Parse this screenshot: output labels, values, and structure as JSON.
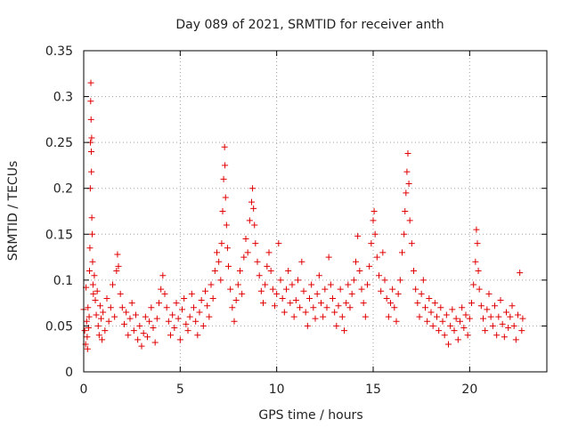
{
  "chart_data": {
    "type": "scatter",
    "title": "Day 089 of 2021, SRMTID for receiver anth",
    "xlabel": "GPS time / hours",
    "ylabel": "SRMTID / TECUs",
    "xlim": [
      0,
      24
    ],
    "ylim": [
      0,
      0.35
    ],
    "xticks": [
      0,
      5,
      10,
      15,
      20
    ],
    "xtick_labels": [
      "0",
      "5",
      "10",
      "15",
      "20"
    ],
    "yticks": [
      0,
      0.05,
      0.1,
      0.15,
      0.2,
      0.25,
      0.3,
      0.35
    ],
    "ytick_labels": [
      "0",
      "0.05",
      "0.1",
      "0.15",
      "0.2",
      "0.25",
      "0.3",
      "0.35"
    ],
    "grid": true,
    "marker": "+",
    "color": "#e00000",
    "series": [
      {
        "name": "SRMTID",
        "points": [
          [
            0.0,
            0.068
          ],
          [
            0.05,
            0.045
          ],
          [
            0.1,
            0.03
          ],
          [
            0.12,
            0.092
          ],
          [
            0.15,
            0.055
          ],
          [
            0.18,
            0.038
          ],
          [
            0.2,
            0.025
          ],
          [
            0.22,
            0.07
          ],
          [
            0.25,
            0.048
          ],
          [
            0.28,
            0.06
          ],
          [
            0.3,
            0.11
          ],
          [
            0.32,
            0.135
          ],
          [
            0.34,
            0.2
          ],
          [
            0.35,
            0.25
          ],
          [
            0.36,
            0.295
          ],
          [
            0.37,
            0.315
          ],
          [
            0.38,
            0.275
          ],
          [
            0.39,
            0.24
          ],
          [
            0.4,
            0.218
          ],
          [
            0.41,
            0.255
          ],
          [
            0.42,
            0.168
          ],
          [
            0.44,
            0.15
          ],
          [
            0.46,
            0.12
          ],
          [
            0.48,
            0.095
          ],
          [
            0.5,
            0.085
          ],
          [
            0.55,
            0.105
          ],
          [
            0.6,
            0.078
          ],
          [
            0.65,
            0.062
          ],
          [
            0.7,
            0.088
          ],
          [
            0.75,
            0.05
          ],
          [
            0.8,
            0.04
          ],
          [
            0.85,
            0.072
          ],
          [
            0.9,
            0.058
          ],
          [
            0.95,
            0.035
          ],
          [
            1.0,
            0.065
          ],
          [
            1.1,
            0.045
          ],
          [
            1.2,
            0.08
          ],
          [
            1.3,
            0.055
          ],
          [
            1.4,
            0.07
          ],
          [
            1.5,
            0.095
          ],
          [
            1.6,
            0.06
          ],
          [
            1.7,
            0.11
          ],
          [
            1.75,
            0.128
          ],
          [
            1.8,
            0.115
          ],
          [
            1.9,
            0.085
          ],
          [
            2.0,
            0.07
          ],
          [
            2.1,
            0.052
          ],
          [
            2.2,
            0.065
          ],
          [
            2.3,
            0.04
          ],
          [
            2.4,
            0.058
          ],
          [
            2.5,
            0.075
          ],
          [
            2.6,
            0.045
          ],
          [
            2.7,
            0.062
          ],
          [
            2.8,
            0.035
          ],
          [
            2.9,
            0.05
          ],
          [
            3.0,
            0.028
          ],
          [
            3.1,
            0.042
          ],
          [
            3.2,
            0.06
          ],
          [
            3.3,
            0.038
          ],
          [
            3.4,
            0.055
          ],
          [
            3.5,
            0.07
          ],
          [
            3.6,
            0.048
          ],
          [
            3.7,
            0.032
          ],
          [
            3.8,
            0.058
          ],
          [
            3.9,
            0.075
          ],
          [
            4.0,
            0.09
          ],
          [
            4.1,
            0.105
          ],
          [
            4.2,
            0.085
          ],
          [
            4.3,
            0.07
          ],
          [
            4.4,
            0.055
          ],
          [
            4.5,
            0.04
          ],
          [
            4.6,
            0.062
          ],
          [
            4.7,
            0.048
          ],
          [
            4.8,
            0.075
          ],
          [
            4.9,
            0.058
          ],
          [
            5.0,
            0.035
          ],
          [
            5.1,
            0.068
          ],
          [
            5.2,
            0.08
          ],
          [
            5.3,
            0.052
          ],
          [
            5.4,
            0.045
          ],
          [
            5.5,
            0.06
          ],
          [
            5.6,
            0.085
          ],
          [
            5.7,
            0.07
          ],
          [
            5.8,
            0.055
          ],
          [
            5.9,
            0.04
          ],
          [
            6.0,
            0.065
          ],
          [
            6.1,
            0.078
          ],
          [
            6.2,
            0.05
          ],
          [
            6.3,
            0.088
          ],
          [
            6.4,
            0.072
          ],
          [
            6.5,
            0.06
          ],
          [
            6.6,
            0.095
          ],
          [
            6.7,
            0.08
          ],
          [
            6.8,
            0.11
          ],
          [
            6.9,
            0.13
          ],
          [
            7.0,
            0.12
          ],
          [
            7.1,
            0.1
          ],
          [
            7.15,
            0.14
          ],
          [
            7.2,
            0.175
          ],
          [
            7.25,
            0.21
          ],
          [
            7.3,
            0.245
          ],
          [
            7.32,
            0.225
          ],
          [
            7.35,
            0.19
          ],
          [
            7.4,
            0.16
          ],
          [
            7.45,
            0.135
          ],
          [
            7.5,
            0.115
          ],
          [
            7.6,
            0.09
          ],
          [
            7.7,
            0.07
          ],
          [
            7.8,
            0.055
          ],
          [
            7.9,
            0.078
          ],
          [
            8.0,
            0.095
          ],
          [
            8.1,
            0.11
          ],
          [
            8.2,
            0.085
          ],
          [
            8.3,
            0.125
          ],
          [
            8.4,
            0.145
          ],
          [
            8.5,
            0.13
          ],
          [
            8.6,
            0.165
          ],
          [
            8.7,
            0.185
          ],
          [
            8.75,
            0.2
          ],
          [
            8.8,
            0.178
          ],
          [
            8.85,
            0.16
          ],
          [
            8.9,
            0.14
          ],
          [
            9.0,
            0.12
          ],
          [
            9.1,
            0.105
          ],
          [
            9.2,
            0.088
          ],
          [
            9.3,
            0.075
          ],
          [
            9.4,
            0.095
          ],
          [
            9.5,
            0.115
          ],
          [
            9.6,
            0.13
          ],
          [
            9.7,
            0.11
          ],
          [
            9.8,
            0.09
          ],
          [
            9.9,
            0.072
          ],
          [
            10.0,
            0.085
          ],
          [
            10.1,
            0.14
          ],
          [
            10.2,
            0.1
          ],
          [
            10.3,
            0.08
          ],
          [
            10.4,
            0.065
          ],
          [
            10.5,
            0.09
          ],
          [
            10.6,
            0.11
          ],
          [
            10.7,
            0.075
          ],
          [
            10.8,
            0.095
          ],
          [
            10.9,
            0.06
          ],
          [
            11.0,
            0.078
          ],
          [
            11.1,
            0.1
          ],
          [
            11.2,
            0.07
          ],
          [
            11.3,
            0.12
          ],
          [
            11.4,
            0.088
          ],
          [
            11.5,
            0.065
          ],
          [
            11.6,
            0.05
          ],
          [
            11.7,
            0.08
          ],
          [
            11.8,
            0.095
          ],
          [
            11.9,
            0.07
          ],
          [
            12.0,
            0.058
          ],
          [
            12.1,
            0.085
          ],
          [
            12.2,
            0.105
          ],
          [
            12.3,
            0.075
          ],
          [
            12.4,
            0.06
          ],
          [
            12.5,
            0.09
          ],
          [
            12.6,
            0.07
          ],
          [
            12.7,
            0.125
          ],
          [
            12.8,
            0.095
          ],
          [
            12.9,
            0.08
          ],
          [
            13.0,
            0.065
          ],
          [
            13.1,
            0.05
          ],
          [
            13.2,
            0.072
          ],
          [
            13.3,
            0.09
          ],
          [
            13.4,
            0.06
          ],
          [
            13.5,
            0.045
          ],
          [
            13.6,
            0.075
          ],
          [
            13.7,
            0.095
          ],
          [
            13.8,
            0.07
          ],
          [
            13.9,
            0.085
          ],
          [
            14.0,
            0.1
          ],
          [
            14.1,
            0.12
          ],
          [
            14.2,
            0.148
          ],
          [
            14.3,
            0.11
          ],
          [
            14.4,
            0.09
          ],
          [
            14.5,
            0.075
          ],
          [
            14.6,
            0.06
          ],
          [
            14.7,
            0.095
          ],
          [
            14.8,
            0.115
          ],
          [
            14.9,
            0.14
          ],
          [
            15.0,
            0.165
          ],
          [
            15.05,
            0.175
          ],
          [
            15.1,
            0.15
          ],
          [
            15.2,
            0.125
          ],
          [
            15.3,
            0.105
          ],
          [
            15.4,
            0.088
          ],
          [
            15.5,
            0.13
          ],
          [
            15.6,
            0.1
          ],
          [
            15.7,
            0.08
          ],
          [
            15.8,
            0.06
          ],
          [
            15.9,
            0.075
          ],
          [
            16.0,
            0.09
          ],
          [
            16.1,
            0.07
          ],
          [
            16.2,
            0.055
          ],
          [
            16.3,
            0.085
          ],
          [
            16.4,
            0.1
          ],
          [
            16.5,
            0.13
          ],
          [
            16.6,
            0.15
          ],
          [
            16.65,
            0.175
          ],
          [
            16.7,
            0.195
          ],
          [
            16.75,
            0.218
          ],
          [
            16.8,
            0.238
          ],
          [
            16.85,
            0.205
          ],
          [
            16.9,
            0.165
          ],
          [
            17.0,
            0.14
          ],
          [
            17.1,
            0.11
          ],
          [
            17.2,
            0.09
          ],
          [
            17.3,
            0.075
          ],
          [
            17.4,
            0.06
          ],
          [
            17.5,
            0.085
          ],
          [
            17.6,
            0.1
          ],
          [
            17.7,
            0.07
          ],
          [
            17.8,
            0.055
          ],
          [
            17.9,
            0.08
          ],
          [
            18.0,
            0.065
          ],
          [
            18.1,
            0.05
          ],
          [
            18.2,
            0.075
          ],
          [
            18.3,
            0.06
          ],
          [
            18.4,
            0.045
          ],
          [
            18.5,
            0.07
          ],
          [
            18.6,
            0.055
          ],
          [
            18.7,
            0.04
          ],
          [
            18.8,
            0.062
          ],
          [
            18.9,
            0.03
          ],
          [
            19.0,
            0.05
          ],
          [
            19.1,
            0.068
          ],
          [
            19.2,
            0.045
          ],
          [
            19.3,
            0.058
          ],
          [
            19.4,
            0.035
          ],
          [
            19.5,
            0.055
          ],
          [
            19.6,
            0.07
          ],
          [
            19.7,
            0.048
          ],
          [
            19.8,
            0.062
          ],
          [
            19.9,
            0.04
          ],
          [
            20.0,
            0.058
          ],
          [
            20.1,
            0.075
          ],
          [
            20.2,
            0.095
          ],
          [
            20.3,
            0.12
          ],
          [
            20.35,
            0.155
          ],
          [
            20.4,
            0.14
          ],
          [
            20.45,
            0.11
          ],
          [
            20.5,
            0.09
          ],
          [
            20.6,
            0.072
          ],
          [
            20.7,
            0.058
          ],
          [
            20.8,
            0.045
          ],
          [
            20.9,
            0.068
          ],
          [
            21.0,
            0.085
          ],
          [
            21.1,
            0.06
          ],
          [
            21.2,
            0.05
          ],
          [
            21.3,
            0.072
          ],
          [
            21.4,
            0.04
          ],
          [
            21.5,
            0.06
          ],
          [
            21.6,
            0.078
          ],
          [
            21.7,
            0.052
          ],
          [
            21.8,
            0.038
          ],
          [
            21.9,
            0.065
          ],
          [
            22.0,
            0.048
          ],
          [
            22.1,
            0.06
          ],
          [
            22.2,
            0.072
          ],
          [
            22.3,
            0.05
          ],
          [
            22.4,
            0.035
          ],
          [
            22.5,
            0.062
          ],
          [
            22.6,
            0.108
          ],
          [
            22.7,
            0.045
          ],
          [
            22.75,
            0.058
          ]
        ]
      }
    ]
  }
}
